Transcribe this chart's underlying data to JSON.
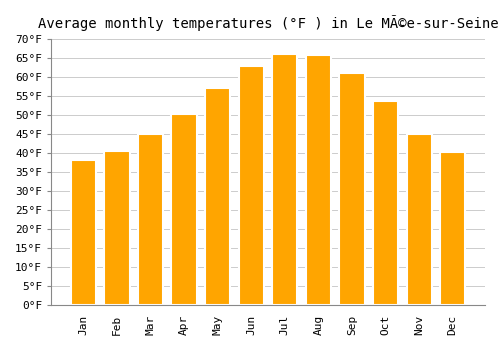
{
  "title": "Average monthly temperatures (°F ) in Le MÃ©e-sur-Seine",
  "months": [
    "Jan",
    "Feb",
    "Mar",
    "Apr",
    "May",
    "Jun",
    "Jul",
    "Aug",
    "Sep",
    "Oct",
    "Nov",
    "Dec"
  ],
  "values": [
    38.3,
    40.6,
    45.0,
    50.4,
    57.0,
    63.0,
    66.2,
    65.8,
    61.0,
    53.8,
    45.0,
    40.3
  ],
  "bar_color": "#FFA500",
  "bar_edge_color": "#FFFFFF",
  "ylim": [
    0,
    70
  ],
  "ytick_step": 5,
  "background_color": "#FFFFFF",
  "grid_color": "#CCCCCC",
  "title_fontsize": 10,
  "tick_fontsize": 8,
  "font_family": "monospace"
}
